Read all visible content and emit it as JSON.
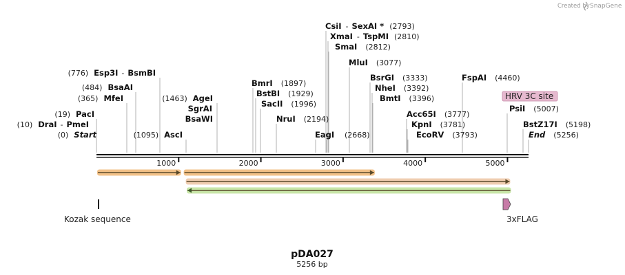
{
  "watermark": {
    "prefix": "Created by",
    "brand": "SnapGene"
  },
  "plasmid": {
    "name": "pDA027",
    "length_label": "5256 bp",
    "length_bp": 5256
  },
  "ruler": {
    "ticks": [
      {
        "bp": 1000,
        "label": "1000"
      },
      {
        "bp": 2000,
        "label": "2000"
      },
      {
        "bp": 3000,
        "label": "3000"
      },
      {
        "bp": 4000,
        "label": "4000"
      },
      {
        "bp": 5000,
        "label": "5000"
      }
    ]
  },
  "enzymes": [
    {
      "pos_label": "(0)",
      "name": "Start",
      "dash": "",
      "name2": "",
      "italic": true
    },
    {
      "pos_label": "(10)",
      "name": "DraI",
      "dash": "-",
      "name2": "PmeI",
      "italic": false
    },
    {
      "pos_label": "(19)",
      "name": "PacI",
      "dash": "",
      "name2": "",
      "italic": false
    },
    {
      "pos_label": "(365)",
      "name": "MfeI",
      "dash": "",
      "name2": "",
      "italic": false
    },
    {
      "pos_label": "(484)",
      "name": "BsaAI",
      "dash": "",
      "name2": "",
      "italic": false
    },
    {
      "pos_label": "(776)",
      "name": "Esp3I",
      "dash": "-",
      "name2": "BsmBI",
      "italic": false
    },
    {
      "pos_label": "(1095)",
      "name": "AscI",
      "dash": "",
      "name2": "",
      "italic": false
    },
    {
      "pos_label": "",
      "name": "BsaWI",
      "dash": "",
      "name2": "",
      "italic": false
    },
    {
      "pos_label": "",
      "name": "SgrAI",
      "dash": "",
      "name2": "",
      "italic": false
    },
    {
      "pos_label": "(1463)",
      "name": "AgeI",
      "dash": "",
      "name2": "",
      "italic": false
    },
    {
      "pos_label": "(1897)",
      "name": "BmrI",
      "dash": "",
      "name2": "",
      "italic": false
    },
    {
      "pos_label": "(1929)",
      "name": "BstBI",
      "dash": "",
      "name2": "",
      "italic": false
    },
    {
      "pos_label": "(1996)",
      "name": "SacII",
      "dash": "",
      "name2": "",
      "italic": false
    },
    {
      "pos_label": "(2194)",
      "name": "NruI",
      "dash": "",
      "name2": "",
      "italic": false
    },
    {
      "pos_label": "",
      "name": "EagI",
      "dash": "",
      "name2": "",
      "italic": false
    },
    {
      "pos_label": "(2793)",
      "name": "CsiI",
      "dash": "-",
      "name2": "SexAI *",
      "italic": false
    },
    {
      "pos_label": "(2810)",
      "name": "XmaI",
      "dash": "-",
      "name2": "TspMI",
      "italic": false
    },
    {
      "pos_label": "(2812)",
      "name": "SmaI",
      "dash": "",
      "name2": "",
      "italic": false
    },
    {
      "pos_label": "(3077)",
      "name": "MluI",
      "dash": "",
      "name2": "",
      "italic": false
    },
    {
      "pos_label": "(2668)",
      "name": "",
      "dash": "",
      "name2": "",
      "italic": false
    },
    {
      "pos_label": "(3333)",
      "name": "BsrGI",
      "dash": "",
      "name2": "",
      "italic": false
    },
    {
      "pos_label": "(3392)",
      "name": "NheI",
      "dash": "",
      "name2": "",
      "italic": false
    },
    {
      "pos_label": "(3396)",
      "name": "BmtI",
      "dash": "",
      "name2": "",
      "italic": false
    },
    {
      "pos_label": "(3777)",
      "name": "Acc65I",
      "dash": "",
      "name2": "",
      "italic": false
    },
    {
      "pos_label": "(3781)",
      "name": "KpnI",
      "dash": "",
      "name2": "",
      "italic": false
    },
    {
      "pos_label": "(3793)",
      "name": "EcoRV",
      "dash": "",
      "name2": "",
      "italic": false
    },
    {
      "pos_label": "(4460)",
      "name": "FspAI",
      "dash": "",
      "name2": "",
      "italic": false
    },
    {
      "pos_label": "(5007)",
      "name": "PsiI",
      "dash": "",
      "name2": "",
      "italic": false
    },
    {
      "pos_label": "(5198)",
      "name": "BstZ17I",
      "dash": "",
      "name2": "",
      "italic": false
    },
    {
      "pos_label": "(5256)",
      "name": "End",
      "dash": "",
      "name2": "",
      "italic": true
    }
  ],
  "features": [
    {
      "label": "Kozak sequence",
      "start_bp": 17,
      "end_bp": 27,
      "color": "#222222"
    },
    {
      "label": "3xFLAG",
      "start_bp": 4990,
      "end_bp": 5056,
      "color": "#c77ba7"
    },
    {
      "label": "HRV 3C site",
      "start_bp": 5080,
      "end_bp": 5104,
      "color": "#e6b9cf"
    }
  ],
  "orfs": [
    {
      "start_bp": 17,
      "end_bp": 1020,
      "direction": "forward",
      "color": "#f2c188"
    },
    {
      "start_bp": 1070,
      "end_bp": 3377,
      "direction": "forward",
      "color": "#f2c188"
    },
    {
      "start_bp": 1095,
      "end_bp": 5025,
      "direction": "forward",
      "color": "#efcdb0"
    },
    {
      "start_bp": 1107,
      "end_bp": 5034,
      "direction": "reverse",
      "color": "#c8e6a8"
    }
  ]
}
